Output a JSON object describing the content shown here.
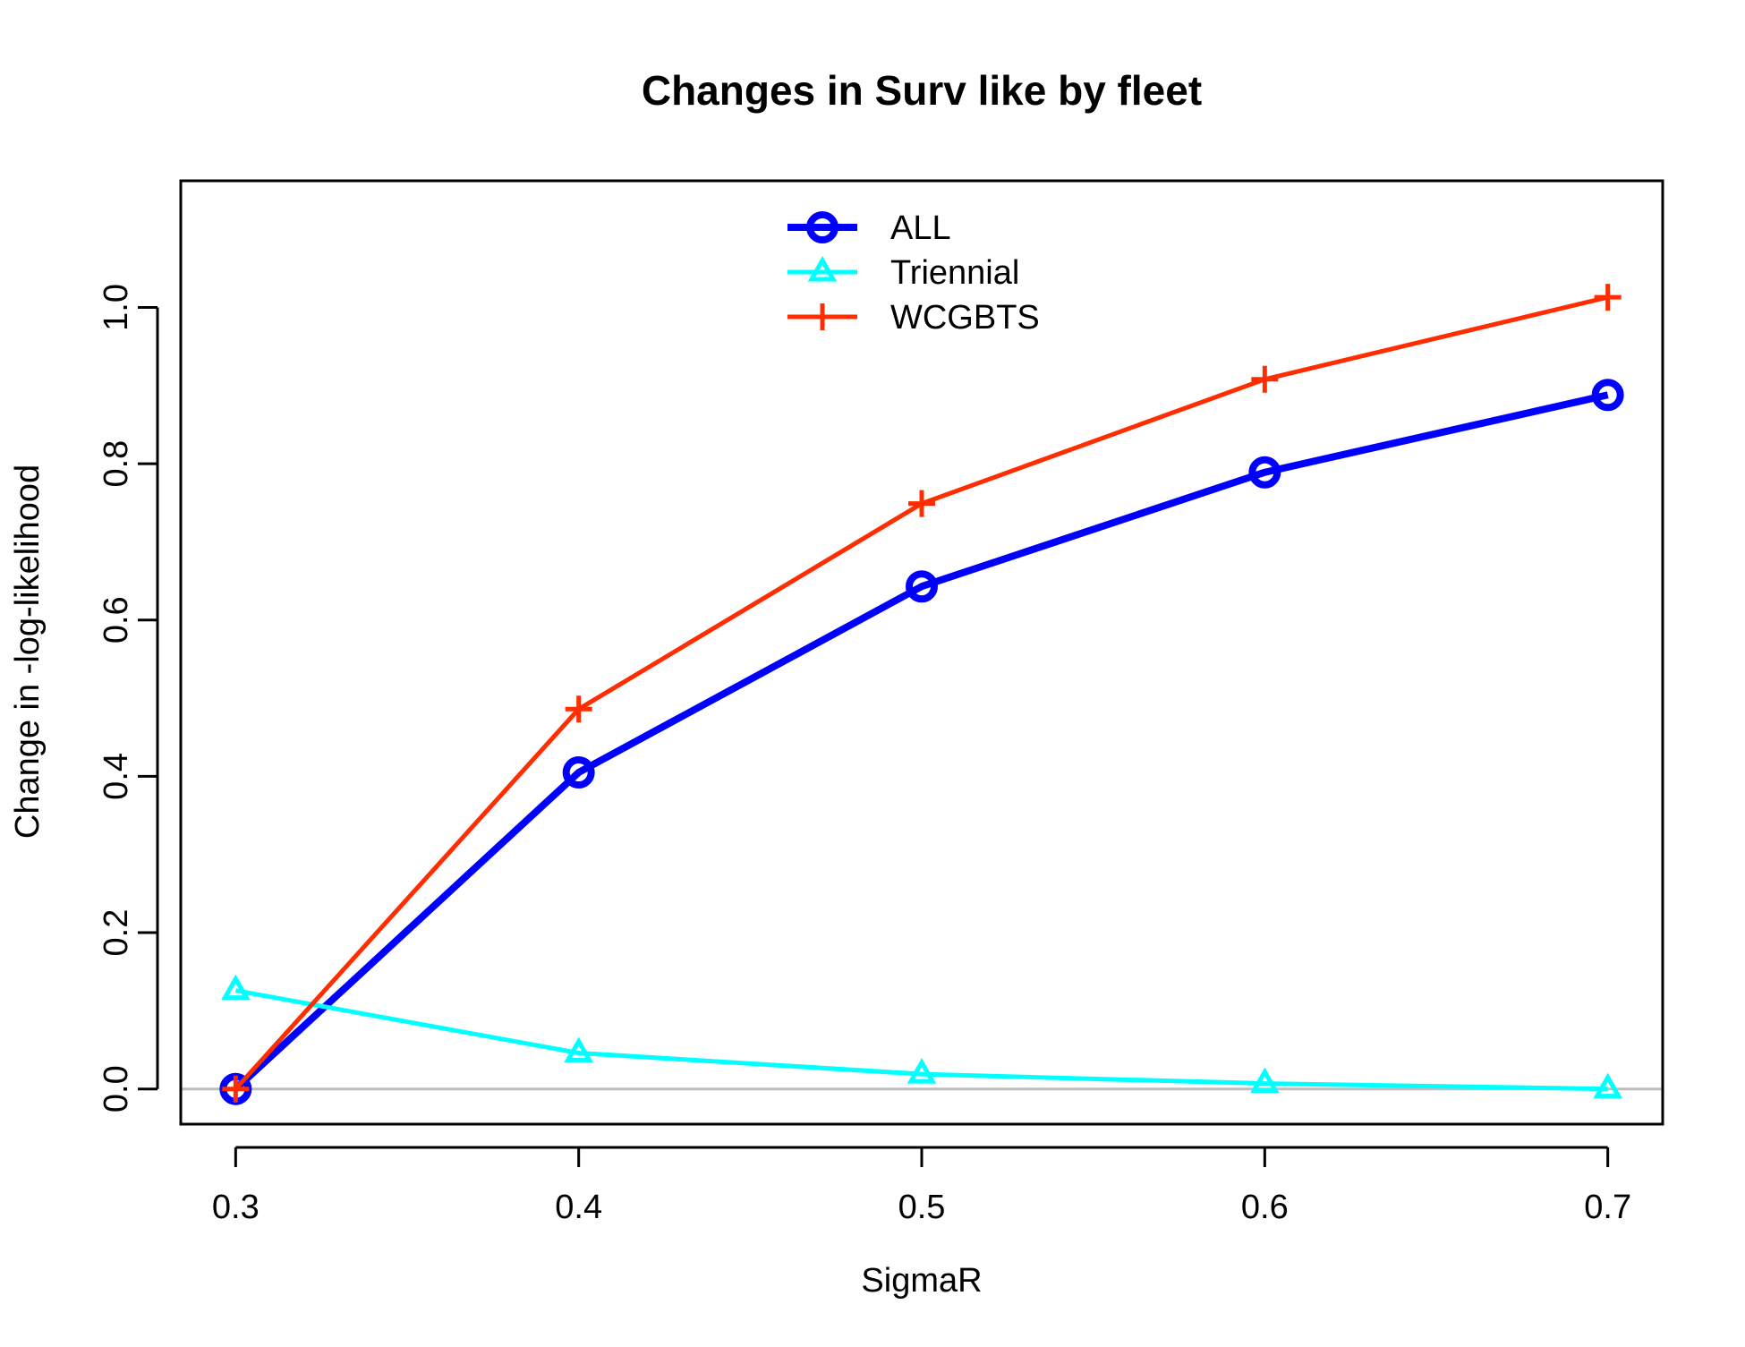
{
  "chart_data": {
    "type": "line",
    "title": "Changes in Surv like by fleet",
    "xlabel": "SigmaR",
    "ylabel": "Change in -log-likelihood",
    "x": [
      0.3,
      0.4,
      0.5,
      0.6,
      0.7
    ],
    "xticks": [
      "0.3",
      "0.4",
      "0.5",
      "0.6",
      "0.7"
    ],
    "yticks": [
      "0.0",
      "0.2",
      "0.4",
      "0.6",
      "0.8",
      "1.0"
    ],
    "xlim": [
      0.284,
      0.716
    ],
    "ylim": [
      -0.045,
      1.162
    ],
    "grid": false,
    "reference_line": {
      "y": 0,
      "color": "#BEBEBE"
    },
    "legend_position": "top-center",
    "series": [
      {
        "name": "ALL",
        "color": "#0000FF",
        "marker": "circle",
        "values": [
          0.0,
          0.405,
          0.643,
          0.789,
          0.888
        ]
      },
      {
        "name": "Triennial",
        "color": "#00FFFF",
        "marker": "triangle",
        "values": [
          0.126,
          0.046,
          0.019,
          0.007,
          0.0
        ]
      },
      {
        "name": "WCGBTS",
        "color": "#FF2D00",
        "marker": "plus",
        "values": [
          0.0,
          0.486,
          0.749,
          0.908,
          1.013
        ]
      }
    ]
  }
}
